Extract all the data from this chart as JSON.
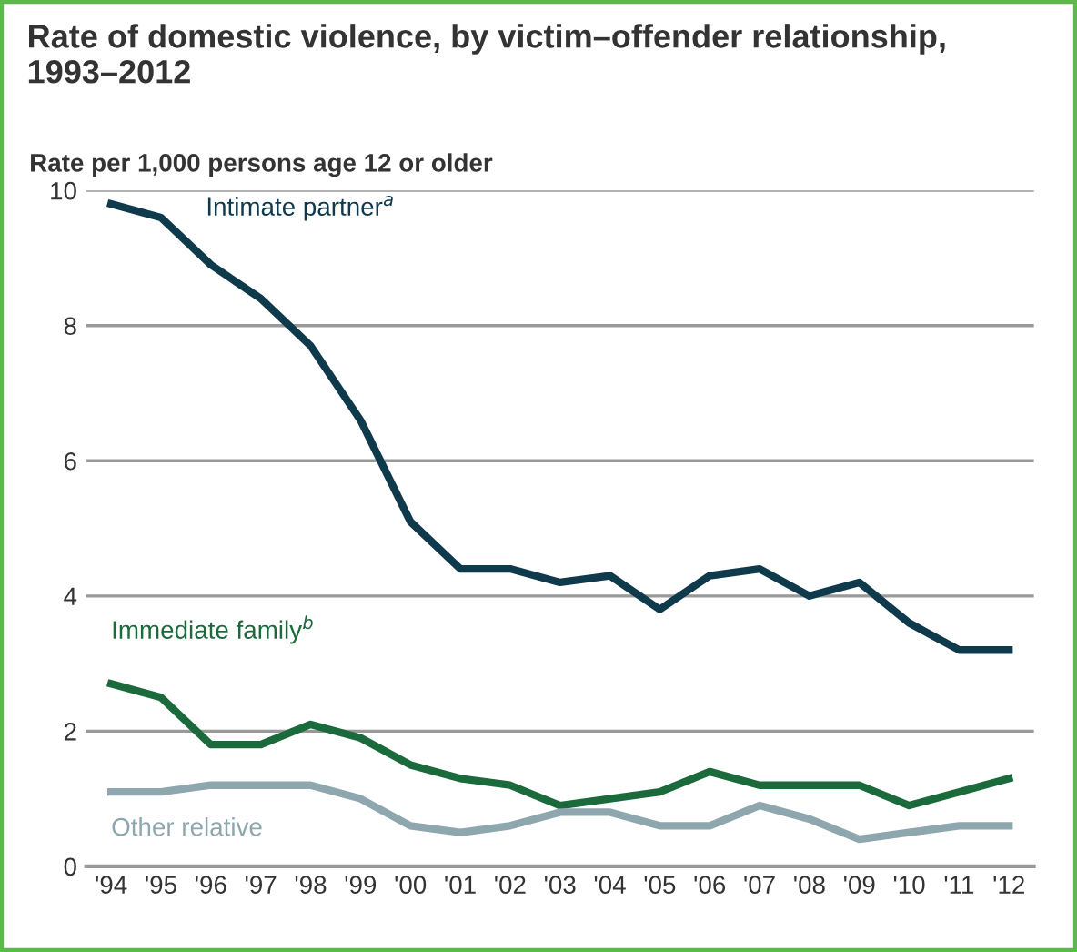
{
  "chart_data": {
    "type": "line",
    "title": "Rate of domestic violence, by victim–offender relationship,\n1993–2012",
    "ylabel": "Rate per 1,000 persons age 12 or older",
    "categories": [
      "'94",
      "'95",
      "'96",
      "'97",
      "'98",
      "'99",
      "'00",
      "'01",
      "'02",
      "'03",
      "'04",
      "'05",
      "'06",
      "'07",
      "'08",
      "'09",
      "'10",
      "'11",
      "'12"
    ],
    "series": [
      {
        "name": "Intimate partner$^{a}$",
        "color": "#0e3a4c",
        "values": [
          9.8,
          9.6,
          8.9,
          8.4,
          7.7,
          6.6,
          5.1,
          4.4,
          4.4,
          4.2,
          4.3,
          3.8,
          4.3,
          4.4,
          4.0,
          4.2,
          3.6,
          3.2,
          3.2
        ]
      },
      {
        "name": "Immediate family$^{b}$",
        "color": "#1b6a3c",
        "values": [
          2.7,
          2.5,
          1.8,
          1.8,
          2.1,
          1.9,
          1.5,
          1.3,
          1.2,
          0.9,
          1.0,
          1.1,
          1.4,
          1.2,
          1.2,
          1.2,
          0.9,
          1.1,
          1.3
        ]
      },
      {
        "name": "Other relative",
        "color": "#8ea7ae",
        "values": [
          1.1,
          1.1,
          1.2,
          1.2,
          1.2,
          1.0,
          0.6,
          0.5,
          0.6,
          0.8,
          0.8,
          0.6,
          0.6,
          0.9,
          0.7,
          0.4,
          0.5,
          0.6,
          0.6
        ]
      }
    ],
    "ylim": [
      0,
      10
    ],
    "yticks": [
      0,
      2,
      4,
      6,
      8,
      10
    ],
    "grid": "y",
    "legend": false,
    "marker": "none",
    "line_style": "solid"
  }
}
